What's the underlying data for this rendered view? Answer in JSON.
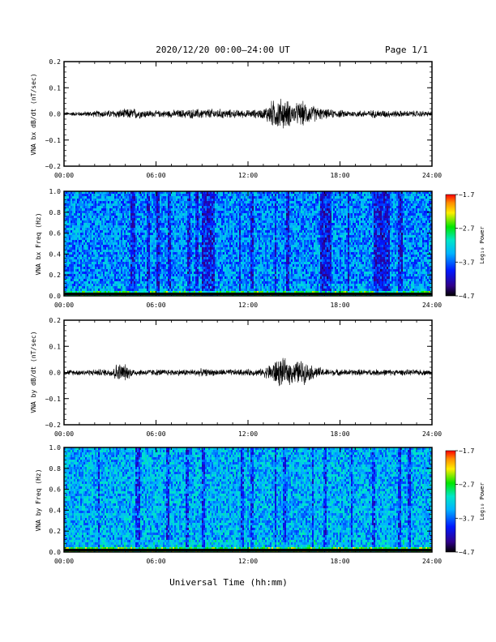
{
  "header": {
    "title": "2020/12/20  00:00–24:00 UT",
    "page": "Page 1/1"
  },
  "chart_data": [
    {
      "type": "line",
      "ylabel": "VNA bx dB/dt (nT/sec)",
      "xlabel": "",
      "xlim": [
        "00:00",
        "24:00"
      ],
      "xticks": [
        "00:00",
        "06:00",
        "12:00",
        "18:00",
        "24:00"
      ],
      "ylim": [
        -0.2,
        0.2
      ],
      "yticks": [
        "0.2",
        "0.1",
        "0.0",
        "−0.1",
        "−0.2"
      ],
      "series": [
        {
          "name": "",
          "x_hours": [
            0,
            1,
            2,
            3,
            4,
            4.5,
            5,
            6,
            7,
            8,
            9,
            10,
            11,
            12,
            13,
            13.5,
            14,
            14.5,
            15,
            15.5,
            16,
            17,
            18,
            19,
            20,
            21,
            22,
            23,
            24
          ],
          "amplitude": [
            0.006,
            0.007,
            0.01,
            0.012,
            0.015,
            0.018,
            0.014,
            0.01,
            0.012,
            0.014,
            0.016,
            0.016,
            0.013,
            0.012,
            0.015,
            0.04,
            0.05,
            0.045,
            0.03,
            0.04,
            0.03,
            0.015,
            0.012,
            0.01,
            0.012,
            0.012,
            0.01,
            0.01,
            0.008
          ]
        }
      ]
    },
    {
      "type": "heatmap",
      "ylabel": "VNA bx Freq (Hz)",
      "xlim": [
        "00:00",
        "24:00"
      ],
      "xticks": [
        "00:00",
        "06:00",
        "12:00",
        "18:00",
        "24:00"
      ],
      "ylim": [
        0.0,
        1.0
      ],
      "yticks": [
        "1.0",
        "0.8",
        "0.6",
        "0.4",
        "0.2",
        "0.0"
      ],
      "colorbar": {
        "label": "Log₁₀ Power",
        "ticks": [
          "−1.7",
          "−2.7",
          "−3.7",
          "−4.7"
        ],
        "range": [
          -4.7,
          -1.7
        ]
      },
      "dark_bands_hours": [
        [
          4.3,
          4.6
        ],
        [
          5.4,
          5.6
        ],
        [
          6.0,
          6.2
        ],
        [
          6.8,
          7.0
        ],
        [
          8.0,
          8.2
        ],
        [
          8.6,
          8.75
        ],
        [
          9.0,
          9.8
        ],
        [
          11.4,
          11.55
        ],
        [
          12.2,
          12.35
        ],
        [
          13.7,
          13.85
        ],
        [
          14.5,
          14.7
        ],
        [
          16.7,
          17.4
        ],
        [
          18.5,
          18.6
        ],
        [
          20.2,
          21.3
        ],
        [
          21.8,
          22.1
        ]
      ]
    },
    {
      "type": "line",
      "ylabel": "VNA by dB/dt (nT/sec)",
      "xlabel": "",
      "xlim": [
        "00:00",
        "24:00"
      ],
      "xticks": [
        "00:00",
        "06:00",
        "12:00",
        "18:00",
        "24:00"
      ],
      "ylim": [
        -0.2,
        0.2
      ],
      "yticks": [
        "0.2",
        "0.1",
        "0.0",
        "−0.1",
        "−0.2"
      ],
      "series": [
        {
          "name": "",
          "x_hours": [
            0,
            1,
            2,
            3,
            3.5,
            4,
            4.5,
            5,
            6,
            7,
            8,
            9,
            10,
            11,
            12,
            13,
            13.5,
            14,
            14.5,
            15,
            15.5,
            16,
            17,
            18,
            19,
            20,
            21,
            22,
            23,
            24
          ],
          "amplitude": [
            0.008,
            0.009,
            0.01,
            0.012,
            0.03,
            0.025,
            0.012,
            0.01,
            0.01,
            0.01,
            0.01,
            0.012,
            0.01,
            0.01,
            0.01,
            0.012,
            0.03,
            0.045,
            0.04,
            0.035,
            0.04,
            0.025,
            0.012,
            0.01,
            0.01,
            0.01,
            0.01,
            0.009,
            0.009,
            0.008
          ]
        }
      ]
    },
    {
      "type": "heatmap",
      "ylabel": "VNA by Freq (Hz)",
      "xlim": [
        "00:00",
        "24:00"
      ],
      "xticks": [
        "00:00",
        "06:00",
        "12:00",
        "18:00",
        "24:00"
      ],
      "ylim": [
        0.0,
        1.0
      ],
      "yticks": [
        "1.0",
        "0.8",
        "0.6",
        "0.4",
        "0.2",
        "0.0"
      ],
      "colorbar": {
        "label": "Log₁₀ Power",
        "ticks": [
          "−1.7",
          "−2.7",
          "−3.7",
          "−4.7"
        ],
        "range": [
          -4.7,
          -1.7
        ]
      },
      "dark_bands_hours": [
        [
          2.2,
          2.35
        ],
        [
          4.6,
          5.0
        ],
        [
          6.7,
          6.85
        ],
        [
          7.9,
          8.1
        ],
        [
          9.0,
          9.15
        ],
        [
          11.5,
          11.7
        ],
        [
          12.2,
          12.35
        ],
        [
          13.7,
          13.9
        ],
        [
          14.3,
          14.5
        ],
        [
          16.2,
          16.3
        ],
        [
          16.9,
          17.1
        ],
        [
          18.7,
          18.8
        ],
        [
          20.1,
          20.3
        ],
        [
          21.8,
          22.0
        ],
        [
          22.4,
          22.6
        ]
      ]
    }
  ],
  "footer": {
    "xlabel": "Universal Time (hh:mm)"
  }
}
